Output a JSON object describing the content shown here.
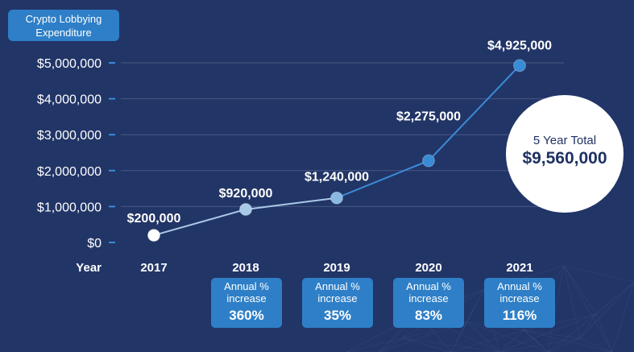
{
  "chart_data": {
    "type": "line",
    "ylabel": [
      "Crypto Lobbying",
      "Expenditure"
    ],
    "xlabel": "Year",
    "categories": [
      "2017",
      "2018",
      "2019",
      "2020",
      "2021"
    ],
    "values": [
      200000,
      920000,
      1240000,
      2275000,
      4925000
    ],
    "value_labels": [
      "$200,000",
      "$920,000",
      "$1,240,000",
      "$2,275,000",
      "$4,925,000"
    ],
    "yticks": [
      0,
      1000000,
      2000000,
      3000000,
      4000000,
      5000000
    ],
    "ytick_labels": [
      "$0",
      "$1,000,000",
      "$2,000,000",
      "$3,000,000",
      "$4,000,000",
      "$5,000,000"
    ],
    "ylim": [
      0,
      5000000
    ],
    "grid": true,
    "annual_increase": {
      "label_line1": "Annual %",
      "label_line2": "increase",
      "values": [
        {
          "year": "2018",
          "value": "360%"
        },
        {
          "year": "2019",
          "value": "35%"
        },
        {
          "year": "2020",
          "value": "83%"
        },
        {
          "year": "2021",
          "value": "116%"
        }
      ]
    },
    "total": {
      "label": "5 Year Total",
      "value": "$9,560,000"
    },
    "colors": {
      "background": "#223567",
      "line_light": "#aac8e6",
      "line_accent": "#3a8bd6",
      "label_box": "#2e7fc7",
      "text": "#ffffff"
    }
  }
}
